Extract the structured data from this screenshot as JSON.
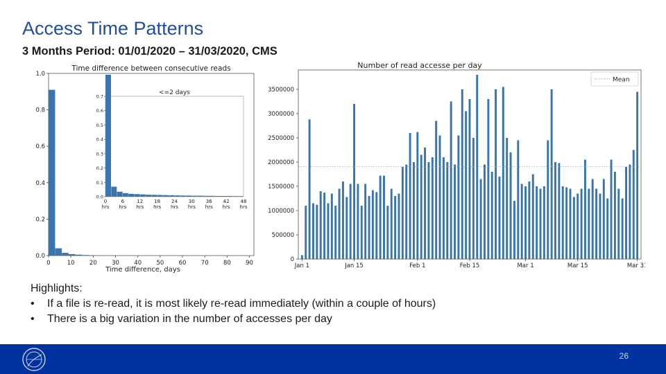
{
  "slide": {
    "title": "Access Time Patterns",
    "subtitle": "3 Months Period: 01/01/2020 – 31/03/2020, CMS",
    "page_number": "26",
    "highlights": {
      "heading": "Highlights:",
      "bullets": [
        "If a file is re-read, it is most likely re-read immediately (within a couple of hours)",
        "There is a big variation in the number of accesses per day"
      ]
    }
  },
  "colors": {
    "accent": "#1f4e9c",
    "bar": "#3a76ad",
    "footer": "#0033a0"
  },
  "icons": {
    "logo": "cern-logo-icon",
    "bullet": "•"
  },
  "chart_data": [
    {
      "type": "bar",
      "title": "Time difference between consecutive reads",
      "xlabel": "Time difference, days",
      "ylabel": "",
      "xlim": [
        0,
        92
      ],
      "ylim": [
        0,
        1.0
      ],
      "xticks": [
        0,
        10,
        20,
        30,
        40,
        50,
        60,
        70,
        80,
        90
      ],
      "yticks": [
        0.0,
        0.2,
        0.4,
        0.6,
        0.8,
        1.0
      ],
      "ytick_labels": [
        "0.0",
        "0.2",
        "0.4",
        "0.6",
        "0.8",
        "1.0"
      ],
      "bin_width_days": 3,
      "bin_starts": [
        0,
        3,
        6,
        9,
        12,
        15,
        18,
        21
      ],
      "values": [
        0.91,
        0.04,
        0.015,
        0.008,
        0.005,
        0.003,
        0.002,
        0.001
      ],
      "inset": {
        "type": "bar",
        "title": "<=2 days",
        "xlim": [
          0,
          48
        ],
        "ylim": [
          0,
          0.7
        ],
        "xticks": [
          0,
          6,
          12,
          18,
          24,
          30,
          36,
          42,
          48
        ],
        "xtick_labels": [
          [
            "0",
            "hrs"
          ],
          [
            "6",
            "hrs"
          ],
          [
            "12",
            "hrs"
          ],
          [
            "18",
            "hrs"
          ],
          [
            "24",
            "hrs"
          ],
          [
            "30",
            "hrs"
          ],
          [
            "36",
            "hrs"
          ],
          [
            "42",
            "hrs"
          ],
          [
            "48",
            "hrs"
          ]
        ],
        "yticks": [
          0.0,
          0.1,
          0.2,
          0.3,
          0.4,
          0.5,
          0.6,
          0.7
        ],
        "ytick_labels": [
          "0.0",
          "0.1",
          "0.2",
          "0.3",
          "0.4",
          "0.5",
          "0.6",
          "0.7"
        ],
        "bin_width_hours": 2,
        "values": [
          0.85,
          0.07,
          0.035,
          0.025,
          0.02,
          0.018,
          0.016,
          0.014,
          0.013,
          0.012,
          0.011,
          0.01,
          0.009,
          0.008,
          0.008,
          0.007,
          0.007,
          0.006,
          0.006,
          0.005,
          0.005,
          0.005,
          0.004,
          0.004
        ]
      }
    },
    {
      "type": "bar",
      "title": "Number of read accesse per day",
      "xlabel": "",
      "ylabel": "",
      "ylim": [
        0,
        3900000
      ],
      "yticks": [
        0,
        500000,
        1000000,
        1500000,
        2000000,
        2500000,
        3000000,
        3500000
      ],
      "ytick_labels": [
        "0",
        "500000",
        "1000000",
        "1500000",
        "2000000",
        "2500000",
        "3000000",
        "3500000"
      ],
      "xticks": [
        1,
        15,
        32,
        46,
        61,
        75,
        91
      ],
      "xtick_labels": [
        "Jan 1",
        "Jan 15",
        "Feb 1",
        "Feb 15",
        "Mar 1",
        "Mar 15",
        "Mar 31"
      ],
      "x": [
        1,
        2,
        3,
        4,
        5,
        6,
        7,
        8,
        9,
        10,
        11,
        12,
        13,
        14,
        15,
        16,
        17,
        18,
        19,
        20,
        21,
        22,
        23,
        24,
        25,
        26,
        27,
        28,
        29,
        30,
        31,
        32,
        33,
        34,
        35,
        36,
        37,
        38,
        39,
        40,
        41,
        42,
        43,
        44,
        45,
        46,
        47,
        48,
        49,
        50,
        51,
        52,
        53,
        54,
        55,
        56,
        57,
        58,
        59,
        60,
        61,
        62,
        63,
        64,
        65,
        66,
        67,
        68,
        69,
        70,
        71,
        72,
        73,
        74,
        75,
        76,
        77,
        78,
        79,
        80,
        81,
        82,
        83,
        84,
        85,
        86,
        87,
        88,
        89,
        90,
        91
      ],
      "values": [
        80000,
        1100000,
        2880000,
        1150000,
        1120000,
        1400000,
        1370000,
        1150000,
        1350000,
        1100000,
        1450000,
        1600000,
        1280000,
        1550000,
        3200000,
        1550000,
        1100000,
        1550000,
        1300000,
        1420000,
        1380000,
        1720000,
        1720000,
        1100000,
        1450000,
        1300000,
        1350000,
        1900000,
        1950000,
        2600000,
        2000000,
        2620000,
        2150000,
        2300000,
        2000000,
        2100000,
        2850000,
        2550000,
        2100000,
        2000000,
        3250000,
        1950000,
        2550000,
        3500000,
        3050000,
        3300000,
        2500000,
        3800000,
        1650000,
        1950000,
        3300000,
        1800000,
        3500000,
        1700000,
        3550000,
        2500000,
        2200000,
        1200000,
        2450000,
        1550000,
        1500000,
        1600000,
        1750000,
        1500000,
        1450000,
        1500000,
        2450000,
        3500000,
        2000000,
        1980000,
        1500000,
        1480000,
        1450000,
        1280000,
        1350000,
        1450000,
        2050000,
        1450000,
        1650000,
        1450000,
        1350000,
        1650000,
        1250000,
        2050000,
        1800000,
        1450000,
        1250000,
        1900000,
        1950000,
        2250000,
        3450000
      ]
    }
  ]
}
